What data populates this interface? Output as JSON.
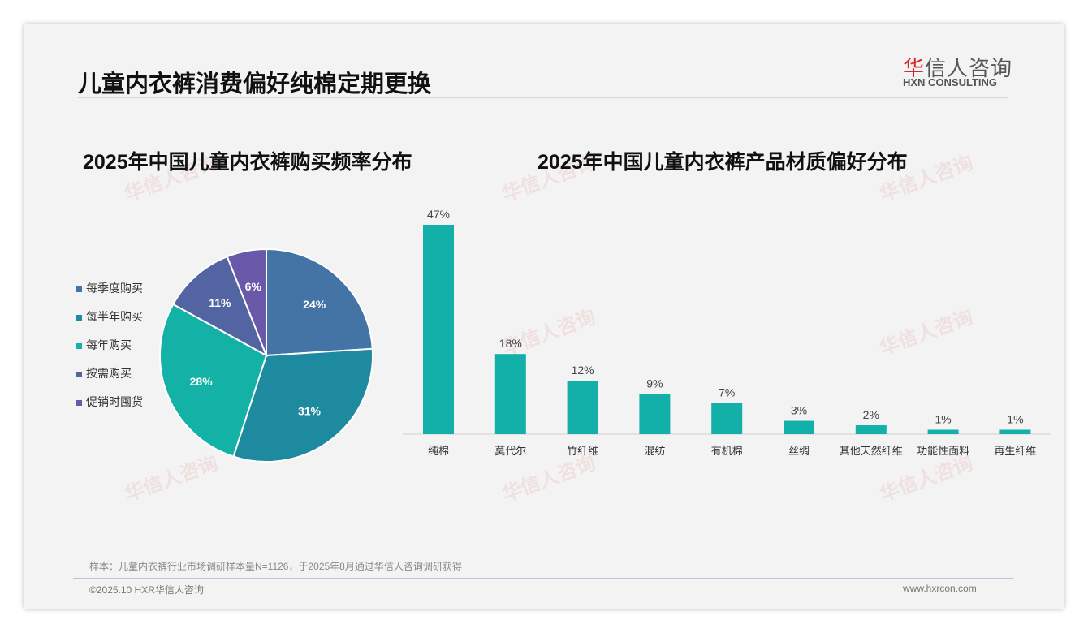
{
  "header": {
    "title": "儿童内衣裤消费偏好纯棉定期更换",
    "logo_cn_red": "华",
    "logo_cn_rest": "信人咨询",
    "logo_en": "HXN CONSULTING"
  },
  "footer": {
    "note": "样本：儿童内衣裤行业市场调研样本量N=1126，于2025年8月通过华信人咨询调研获得",
    "copyright": "©2025.10 HXR华信人咨询",
    "url": "www.hxrcon.com"
  },
  "chart_data": [
    {
      "type": "pie",
      "title": "2025年中国儿童内衣裤购买频率分布",
      "legend_position": "left",
      "categories": [
        "每季度购买",
        "每半年购买",
        "每年购买",
        "按需购买",
        "促销时囤货"
      ],
      "values": [
        24,
        31,
        28,
        11,
        6
      ],
      "labels": [
        "24%",
        "31%",
        "28%",
        "11%",
        "6%"
      ],
      "colors": [
        "#4473a6",
        "#1d8aa0",
        "#14b1a6",
        "#5265a2",
        "#6a59a8"
      ]
    },
    {
      "type": "bar",
      "title": "2025年中国儿童内衣裤产品材质偏好分布",
      "categories": [
        "纯棉",
        "莫代尔",
        "竹纤维",
        "混纺",
        "有机棉",
        "丝绸",
        "其他天然纤维",
        "功能性面料",
        "再生纤维"
      ],
      "values": [
        47,
        18,
        12,
        9,
        7,
        3,
        2,
        1,
        1
      ],
      "labels": [
        "47%",
        "18%",
        "12%",
        "9%",
        "7%",
        "3%",
        "2%",
        "1%",
        "1%"
      ],
      "color": "#12b0a8",
      "ylim": [
        0,
        50
      ]
    }
  ]
}
